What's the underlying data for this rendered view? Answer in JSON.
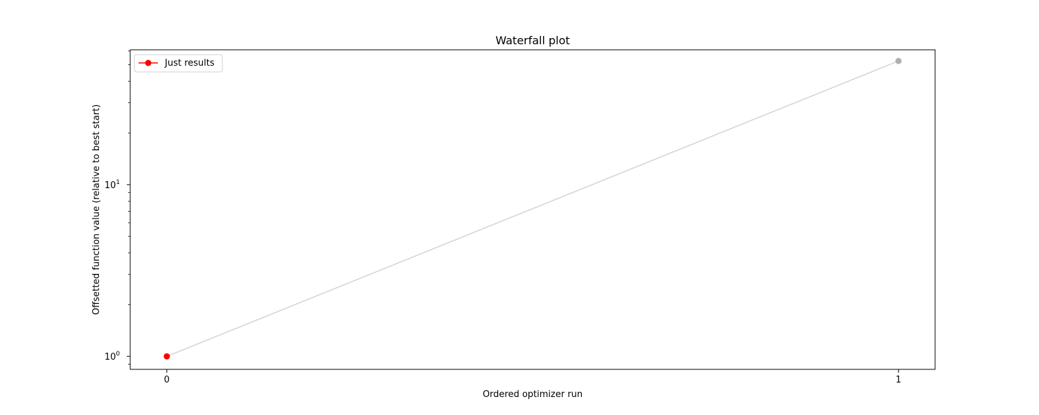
{
  "chart_data": {
    "type": "line",
    "title": "Waterfall plot",
    "xlabel": "Ordered optimizer run",
    "ylabel": "Offsetted function value (relative to best start)",
    "yscale": "log",
    "xlim": [
      -0.05,
      1.05
    ],
    "ylim": [
      0.84,
      61
    ],
    "x_ticks": [
      {
        "value": 0,
        "label": "0"
      },
      {
        "value": 1,
        "label": "1"
      }
    ],
    "y_ticks": [
      {
        "value": 1,
        "base": "10",
        "exp": "0"
      },
      {
        "value": 10,
        "base": "10",
        "exp": "1"
      }
    ],
    "grid": false,
    "legend": {
      "position": "top-left",
      "entries": [
        "Just results"
      ]
    },
    "line_color": "#d3d3d3",
    "points": [
      {
        "x": 0,
        "y": 1,
        "color": "#ff0000"
      },
      {
        "x": 1,
        "y": 52.5,
        "color": "#b0b0b0"
      }
    ],
    "series": [
      {
        "name": "Just results",
        "color": "#ff0000"
      }
    ]
  }
}
